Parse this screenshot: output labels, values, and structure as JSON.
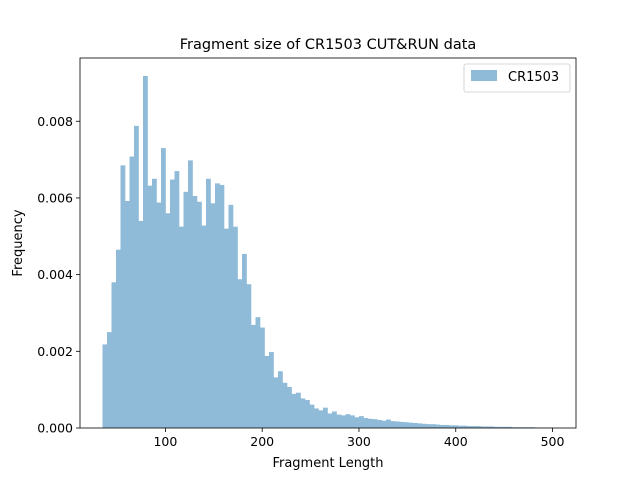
{
  "chart_data": {
    "type": "bar",
    "title": "Fragment size of CR1503 CUT&RUN data",
    "xlabel": "Fragment Length",
    "ylabel": "Frequency",
    "xlim": [
      11.75,
      524.25
    ],
    "ylim": [
      0,
      0.00965
    ],
    "xticks": [
      100,
      200,
      300,
      400,
      500
    ],
    "yticks": [
      0.0,
      0.002,
      0.004,
      0.006,
      0.008
    ],
    "ytick_labels": [
      "0.000",
      "0.002",
      "0.004",
      "0.006",
      "0.008"
    ],
    "grid": false,
    "legend": {
      "position": "top-right"
    },
    "series": [
      {
        "name": "CR1503",
        "color": "#8fbad8",
        "bin_start": 35,
        "bin_width": 4.65,
        "values": [
          0.00218,
          0.0025,
          0.0038,
          0.00465,
          0.00685,
          0.00592,
          0.00708,
          0.00788,
          0.0054,
          0.00918,
          0.00632,
          0.0065,
          0.00588,
          0.0073,
          0.0056,
          0.00648,
          0.0067,
          0.00525,
          0.00616,
          0.00698,
          0.00605,
          0.0059,
          0.00528,
          0.0065,
          0.00586,
          0.00638,
          0.00634,
          0.0052,
          0.00582,
          0.00525,
          0.00388,
          0.00454,
          0.00375,
          0.00269,
          0.00289,
          0.00262,
          0.00188,
          0.00198,
          0.00132,
          0.00148,
          0.00118,
          0.00107,
          0.00089,
          0.00092,
          0.00077,
          0.00073,
          0.00061,
          0.00051,
          0.00046,
          0.00053,
          0.00038,
          0.00043,
          0.00035,
          0.00033,
          0.00036,
          0.00033,
          0.00028,
          0.00031,
          0.00026,
          0.00024,
          0.00023,
          0.00021,
          0.00019,
          0.00022,
          0.00018,
          0.00017,
          0.00016,
          0.00015,
          0.00014,
          0.00013,
          0.00012,
          0.00011,
          0.0001,
          0.0001,
          9e-05,
          8e-05,
          8e-05,
          7e-05,
          7e-05,
          6e-05,
          6e-05,
          5e-05,
          5e-05,
          5e-05,
          4e-05,
          4e-05,
          4e-05,
          3e-05,
          3e-05,
          3e-05,
          3e-05,
          2e-05,
          2e-05,
          2e-05,
          2e-05,
          2e-05,
          1e-05,
          1e-05,
          1e-05,
          1e-05
        ]
      }
    ]
  }
}
